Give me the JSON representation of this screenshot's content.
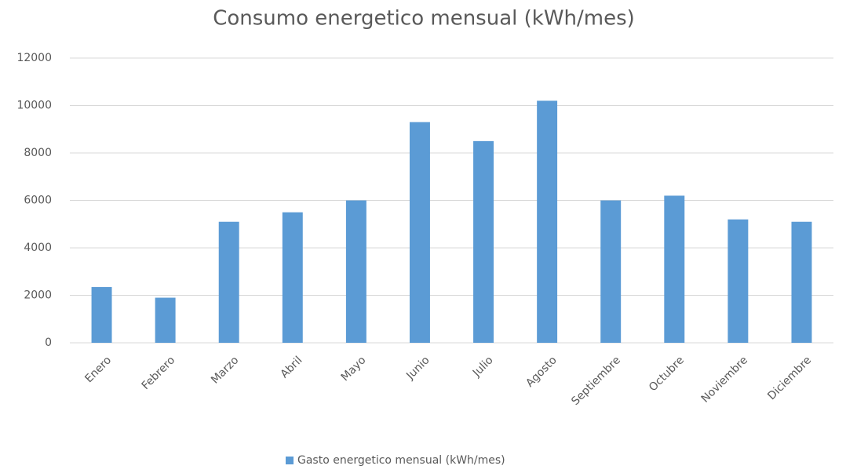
{
  "chart_data": {
    "type": "bar",
    "title": "Consumo energetico mensual (kWh/mes)",
    "categories": [
      "Enero",
      "Febrero",
      "Marzo",
      "Abril",
      "Mayo",
      "Junio",
      "Julio",
      "Agosto",
      "Septiembre",
      "Octubre",
      "Noviembre",
      "Diciembre"
    ],
    "series": [
      {
        "name": "Gasto energetico mensual (kWh/mes)",
        "color": "#5b9bd5",
        "values": [
          2350,
          1900,
          5100,
          5500,
          6000,
          9300,
          8500,
          10200,
          6000,
          6200,
          5200,
          5100
        ]
      }
    ],
    "ylim": [
      0,
      12000
    ],
    "yticks": [
      0,
      2000,
      4000,
      6000,
      8000,
      10000,
      12000
    ],
    "grid": true,
    "legend": "bottom"
  }
}
